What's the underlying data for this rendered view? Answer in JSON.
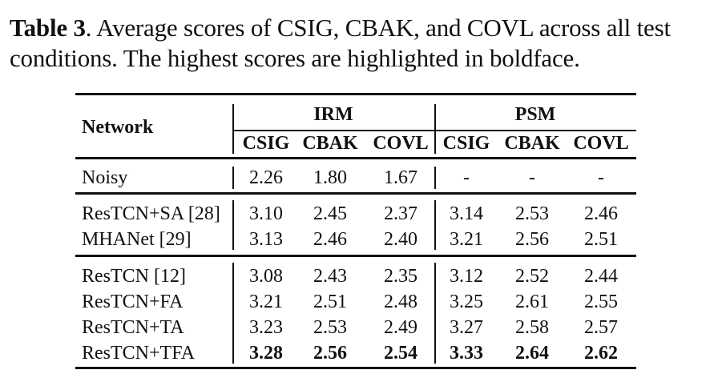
{
  "caption": {
    "label": "Table 3",
    "text": ". Average scores of CSIG, CBAK, and COVL across all test conditions. The highest scores are highlighted in boldface."
  },
  "table": {
    "header": {
      "network": "Network",
      "group1": "IRM",
      "group2": "PSM",
      "sub": [
        "CSIG",
        "CBAK",
        "COVL",
        "CSIG",
        "CBAK",
        "COVL"
      ]
    },
    "rows": [
      {
        "name": "Noisy",
        "values": [
          "2.26",
          "1.80",
          "1.67",
          "-",
          "-",
          "-"
        ]
      },
      {
        "name": "ResTCN+SA [28]",
        "values": [
          "3.10",
          "2.45",
          "2.37",
          "3.14",
          "2.53",
          "2.46"
        ]
      },
      {
        "name": "MHANet [29]",
        "values": [
          "3.13",
          "2.46",
          "2.40",
          "3.21",
          "2.56",
          "2.51"
        ]
      },
      {
        "name": "ResTCN [12]",
        "values": [
          "3.08",
          "2.43",
          "2.35",
          "3.12",
          "2.52",
          "2.44"
        ]
      },
      {
        "name": "ResTCN+FA",
        "values": [
          "3.21",
          "2.51",
          "2.48",
          "3.25",
          "2.61",
          "2.55"
        ]
      },
      {
        "name": "ResTCN+TA",
        "values": [
          "3.23",
          "2.53",
          "2.49",
          "3.27",
          "2.58",
          "2.57"
        ]
      },
      {
        "name": "ResTCN+TFA",
        "values": [
          "3.28",
          "2.56",
          "2.54",
          "3.33",
          "2.64",
          "2.62"
        ],
        "bold": true
      }
    ]
  }
}
